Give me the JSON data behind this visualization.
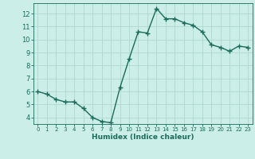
{
  "x": [
    0,
    1,
    2,
    3,
    4,
    5,
    6,
    7,
    8,
    9,
    10,
    11,
    12,
    13,
    14,
    15,
    16,
    17,
    18,
    19,
    20,
    21,
    22,
    23
  ],
  "y": [
    6.0,
    5.8,
    5.4,
    5.2,
    5.2,
    4.7,
    4.0,
    3.7,
    3.6,
    6.3,
    8.5,
    10.6,
    10.5,
    12.4,
    11.6,
    11.6,
    11.3,
    11.1,
    10.6,
    9.6,
    9.4,
    9.1,
    9.5,
    9.4
  ],
  "xlabel": "Humidex (Indice chaleur)",
  "line_color": "#1a6b5a",
  "bg_color": "#cceee8",
  "grid_color": "#b0d8d0",
  "tick_color": "#1a6b5a",
  "label_color": "#1a6b5a",
  "ylim": [
    3.5,
    12.8
  ],
  "xlim": [
    -0.5,
    23.5
  ],
  "yticks": [
    4,
    5,
    6,
    7,
    8,
    9,
    10,
    11,
    12
  ],
  "xticks": [
    0,
    1,
    2,
    3,
    4,
    5,
    6,
    7,
    8,
    9,
    10,
    11,
    12,
    13,
    14,
    15,
    16,
    17,
    18,
    19,
    20,
    21,
    22,
    23
  ],
  "marker": "+",
  "marker_size": 4,
  "line_width": 1.0
}
